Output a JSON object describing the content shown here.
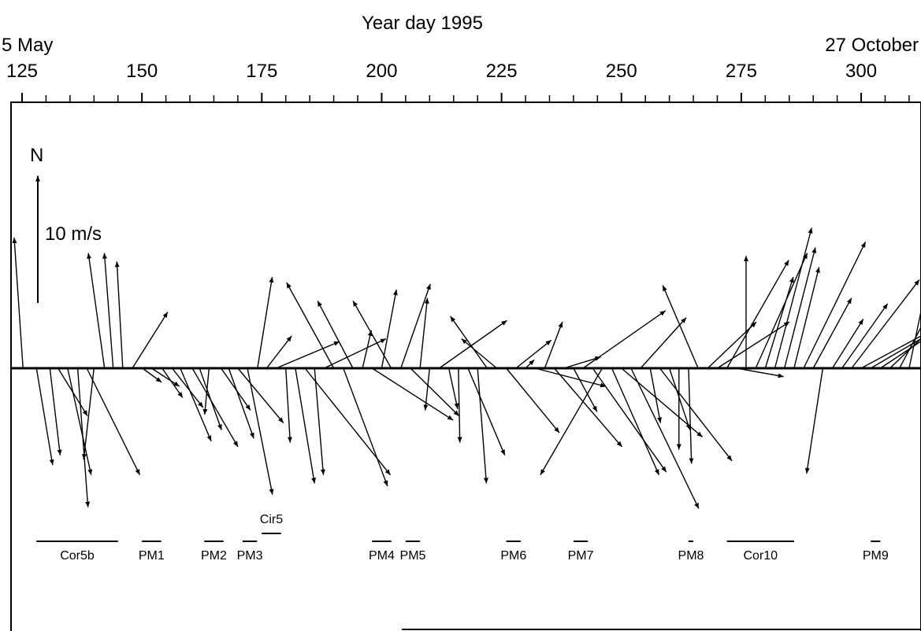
{
  "chart_data": {
    "type": "vector",
    "title": "Year day 1995",
    "start_label": "5 May",
    "end_label": "27 October",
    "xlim": [
      125,
      311
    ],
    "x_ticks": [
      125,
      150,
      175,
      200,
      225,
      250,
      275,
      300
    ],
    "x_tick_labels": [
      "125",
      "150",
      "175",
      "200",
      "225",
      "250",
      "275",
      "300"
    ],
    "minor_tick_step": 5,
    "north_label": "N",
    "scale_label": "10 m/s",
    "scale_speed": 10,
    "grid": false,
    "vectors": [
      [
        125.2,
        -0.6,
        9.3
      ],
      [
        128.0,
        1.1,
        -6.9
      ],
      [
        130.8,
        0.7,
        -6.2
      ],
      [
        132.5,
        2.0,
        -3.4
      ],
      [
        134.5,
        1.6,
        -7.6
      ],
      [
        136.6,
        0.7,
        -9.9
      ],
      [
        138.5,
        3.6,
        -7.6
      ],
      [
        140.0,
        -0.7,
        -6.5
      ],
      [
        142.2,
        -1.1,
        8.2
      ],
      [
        144.0,
        -0.6,
        8.2
      ],
      [
        146.0,
        -0.4,
        7.6
      ],
      [
        148.0,
        2.4,
        4.0
      ],
      [
        150.1,
        1.3,
        -1.0
      ],
      [
        152.0,
        1.9,
        -1.3
      ],
      [
        154.2,
        1.4,
        -2.1
      ],
      [
        156.3,
        2.1,
        -2.8
      ],
      [
        158.0,
        2.1,
        -5.2
      ],
      [
        160.5,
        3.1,
        -5.6
      ],
      [
        162.0,
        1.5,
        -4.4
      ],
      [
        164.0,
        -0.3,
        -3.3
      ],
      [
        166.5,
        2.0,
        -3.0
      ],
      [
        168.1,
        1.7,
        -5.0
      ],
      [
        170.0,
        3.1,
        -3.9
      ],
      [
        172.0,
        1.7,
        -9.0
      ],
      [
        174.1,
        1.0,
        6.5
      ],
      [
        176.0,
        1.7,
        2.3
      ],
      [
        178.0,
        4.3,
        1.9
      ],
      [
        180.0,
        0.3,
        -5.3
      ],
      [
        182.0,
        1.3,
        -8.2
      ],
      [
        184.0,
        5.8,
        -7.6
      ],
      [
        186.0,
        0.6,
        -7.6
      ],
      [
        188.0,
        4.2,
        2.1
      ],
      [
        190.0,
        -3.2,
        6.1
      ],
      [
        192.0,
        3.0,
        -8.4
      ],
      [
        194.0,
        -2.4,
        4.8
      ],
      [
        196.0,
        0.6,
        2.7
      ],
      [
        198.0,
        5.5,
        -3.7
      ],
      [
        200.0,
        1.0,
        5.6
      ],
      [
        202.0,
        -2.6,
        4.8
      ],
      [
        204.0,
        2.0,
        6.0
      ],
      [
        206.0,
        3.3,
        -3.4
      ],
      [
        208.0,
        0.5,
        5.0
      ],
      [
        210.0,
        -0.3,
        -3.0
      ],
      [
        212.0,
        4.6,
        3.4
      ],
      [
        214.0,
        0.6,
        -2.9
      ],
      [
        216.0,
        0.1,
        -5.3
      ],
      [
        218.0,
        2.5,
        -6.2
      ],
      [
        220.0,
        0.6,
        -8.2
      ],
      [
        222.0,
        -2.5,
        3.7
      ],
      [
        224.0,
        -2.4,
        2.1
      ],
      [
        226.0,
        3.6,
        -4.6
      ],
      [
        228.0,
        2.4,
        2.0
      ],
      [
        230.0,
        0.6,
        0.6
      ],
      [
        232.0,
        4.8,
        -1.3
      ],
      [
        234.0,
        1.2,
        3.3
      ],
      [
        236.0,
        4.6,
        -5.6
      ],
      [
        238.0,
        2.5,
        0.8
      ],
      [
        240.0,
        1.6,
        -3.1
      ],
      [
        242.0,
        5.6,
        4.1
      ],
      [
        244.0,
        5.0,
        -7.4
      ],
      [
        246.0,
        -4.2,
        -7.6
      ],
      [
        248.0,
        3.2,
        -7.6
      ],
      [
        250.0,
        5.5,
        -4.9
      ],
      [
        252.0,
        4.6,
        -10.0
      ],
      [
        254.0,
        3.1,
        3.6
      ],
      [
        256.0,
        0.7,
        -3.9
      ],
      [
        258.0,
        4.9,
        -6.6
      ],
      [
        260.0,
        1.4,
        -4.4
      ],
      [
        262.0,
        0.0,
        -5.8
      ],
      [
        264.0,
        0.2,
        -6.8
      ],
      [
        266.0,
        -2.4,
        5.9
      ],
      [
        268.0,
        3.3,
        3.3
      ],
      [
        270.0,
        4.9,
        3.3
      ],
      [
        272.0,
        4.2,
        7.7
      ],
      [
        274.0,
        3.2,
        -0.6
      ],
      [
        276.0,
        0.0,
        8.0
      ],
      [
        278.0,
        3.5,
        8.2
      ],
      [
        280.0,
        1.9,
        6.5
      ],
      [
        282.0,
        2.5,
        10.0
      ],
      [
        284.0,
        2.1,
        8.6
      ],
      [
        286.0,
        1.7,
        7.2
      ],
      [
        288.0,
        4.2,
        9.0
      ],
      [
        290.0,
        2.6,
        5.0
      ],
      [
        292.0,
        -1.1,
        -7.5
      ],
      [
        294.0,
        2.1,
        3.5
      ],
      [
        296.0,
        3.1,
        4.6
      ],
      [
        298.0,
        4.6,
        6.3
      ],
      [
        300.0,
        4.6,
        2.6
      ],
      [
        302.0,
        5.2,
        3.2
      ],
      [
        304.0,
        5.9,
        4.1
      ],
      [
        306.0,
        4.4,
        4.4
      ],
      [
        308.0,
        3.3,
        6.6
      ],
      [
        310.0,
        1.6,
        8.0
      ]
    ],
    "events": [
      {
        "label": "Cor5b",
        "start": 128,
        "end": 145
      },
      {
        "label": "PM1",
        "start": 150,
        "end": 154
      },
      {
        "label": "PM2",
        "start": 163,
        "end": 167
      },
      {
        "label": "PM3",
        "start": 171,
        "end": 174
      },
      {
        "label": "Cir5",
        "start": 175,
        "end": 179
      },
      {
        "label": "PM4",
        "start": 198,
        "end": 202
      },
      {
        "label": "PM5",
        "start": 205,
        "end": 208
      },
      {
        "label": "PM6",
        "start": 226,
        "end": 229
      },
      {
        "label": "PM7",
        "start": 240,
        "end": 243
      },
      {
        "label": "PM8",
        "start": 264,
        "end": 265
      },
      {
        "label": "Cor10",
        "start": 272,
        "end": 286
      },
      {
        "label": "PM9",
        "start": 302,
        "end": 304
      }
    ]
  }
}
